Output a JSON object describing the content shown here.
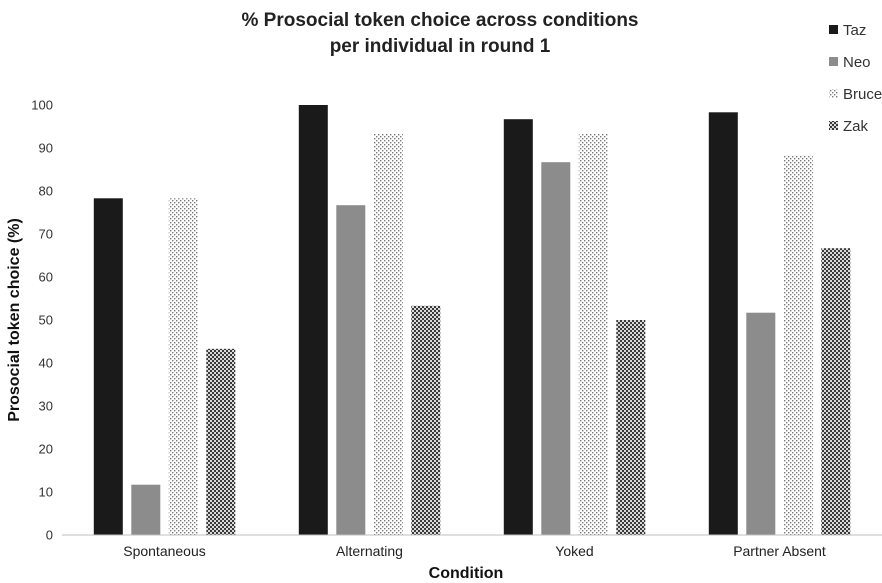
{
  "chart_data": {
    "type": "bar",
    "title_line1": "% Prosocial token choice across conditions",
    "title_line2": "per individual in round 1",
    "xlabel": "Condition",
    "ylabel": "Prosocial token choice (%)",
    "ylim": [
      0,
      100
    ],
    "yticks": [
      0,
      10,
      20,
      30,
      40,
      50,
      60,
      70,
      80,
      90,
      100
    ],
    "grid": false,
    "legend_position": "top-right",
    "categories": [
      "Spontaneous",
      "Alternating",
      "Yoked",
      "Partner Absent"
    ],
    "series": [
      {
        "name": "Taz",
        "values": [
          78.3,
          100,
          96.7,
          98.3
        ],
        "color": "#1a1a1a",
        "pattern": "solid"
      },
      {
        "name": "Neo",
        "values": [
          11.7,
          76.7,
          86.7,
          51.7
        ],
        "color": "#8c8c8c",
        "pattern": "solid"
      },
      {
        "name": "Bruce",
        "values": [
          78.3,
          93.3,
          93.3,
          88.3
        ],
        "color": "#bdbdbd",
        "pattern": "dots"
      },
      {
        "name": "Zak",
        "values": [
          43.3,
          53.3,
          50.0,
          66.7
        ],
        "color": "#555555",
        "pattern": "crosshatch"
      }
    ]
  }
}
